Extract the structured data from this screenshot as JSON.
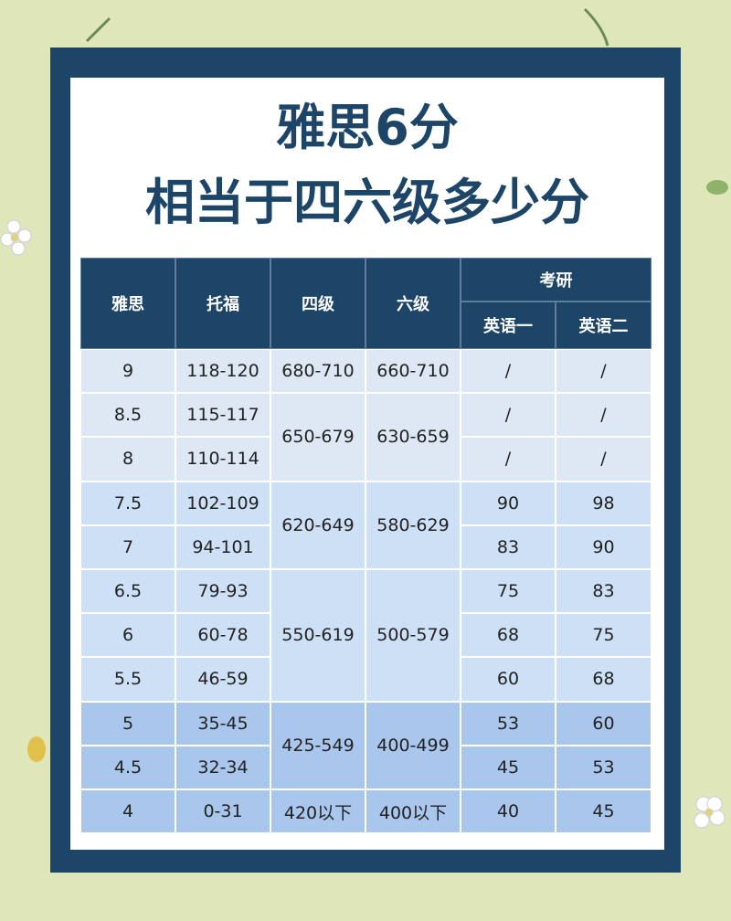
{
  "header": {
    "title_line1": "雅思6分",
    "title_line2": "相当于四六级多少分"
  },
  "table": {
    "headers": {
      "ielts": "雅思",
      "toefl": "托福",
      "cet4": "四级",
      "cet6": "六级",
      "kaoyan": "考研",
      "english1": "英语一",
      "english2": "英语二"
    },
    "rows": [
      [
        "9",
        "118-120",
        "/",
        "/"
      ],
      [
        "8.5",
        "115-117",
        "/",
        "/"
      ],
      [
        "8",
        "110-114",
        "/",
        "/"
      ],
      [
        "7.5",
        "102-109",
        "90",
        "98"
      ],
      [
        "7",
        "94-101",
        "83",
        "90"
      ],
      [
        "6.5",
        "79-93",
        "75",
        "83"
      ],
      [
        "6",
        "60-78",
        "68",
        "75"
      ],
      [
        "5.5",
        "46-59",
        "60",
        "68"
      ],
      [
        "5",
        "35-45",
        "53",
        "60"
      ],
      [
        "4.5",
        "32-34",
        "45",
        "53"
      ],
      [
        "4",
        "0-31",
        "40",
        "45"
      ]
    ],
    "cet4": [
      "680-710",
      "650-679",
      "620-649",
      "550-619",
      "425-549",
      "420以下"
    ],
    "cet6": [
      "660-710",
      "630-659",
      "580-629",
      "500-579",
      "400-499",
      "400以下"
    ]
  }
}
